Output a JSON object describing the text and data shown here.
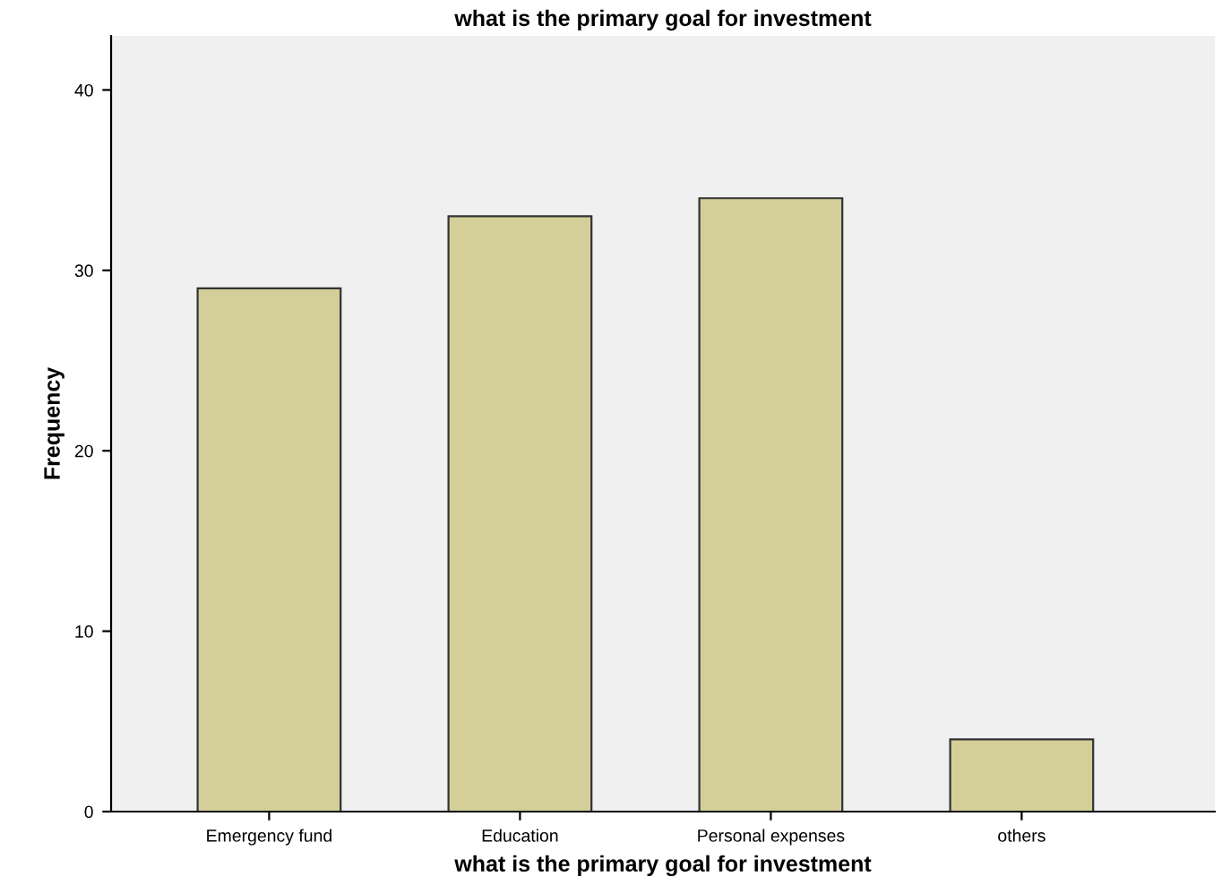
{
  "chart_data": {
    "type": "bar",
    "title": "what is the primary goal for investment",
    "xlabel": "what is the primary goal for investment",
    "ylabel": "Frequency",
    "categories": [
      "Emergency fund",
      "Education",
      "Personal expenses",
      "others"
    ],
    "values": [
      29,
      33,
      34,
      4
    ],
    "color": "#d4cf99",
    "ylim": [
      0,
      43
    ],
    "yticks": [
      0,
      10,
      20,
      30,
      40
    ],
    "grid": false
  }
}
